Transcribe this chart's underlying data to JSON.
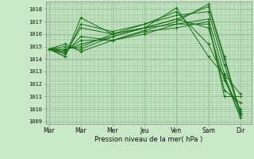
{
  "bg_color": "#c8e8c8",
  "grid_color": "#a0c8a0",
  "line_color": "#1a6e1a",
  "marker_color": "#1a6e1a",
  "xlabel": "Pression niveau de la mer( hPa )",
  "ylim": [
    1008.8,
    1018.6
  ],
  "yticks": [
    1009,
    1010,
    1011,
    1012,
    1013,
    1014,
    1015,
    1016,
    1017,
    1018
  ],
  "xtick_labels": [
    "Mar",
    "Mar",
    "Mer",
    "Jeu",
    "Ven",
    "Sam",
    "Dir"
  ],
  "xtick_positions": [
    0,
    1,
    2,
    3,
    4,
    5,
    6
  ],
  "xlim": [
    -0.1,
    6.35
  ],
  "series": [
    [
      1014.8,
      1014.2,
      1017.3,
      1016.0,
      1016.5,
      1018.1,
      1014.2,
      1012.7,
      1009.5
    ],
    [
      1014.8,
      1014.2,
      1016.8,
      1016.2,
      1016.8,
      1017.8,
      1015.2,
      1012.5,
      1009.3
    ],
    [
      1014.8,
      1014.4,
      1016.5,
      1016.0,
      1016.5,
      1017.2,
      1016.5,
      1012.3,
      1010.0
    ],
    [
      1014.8,
      1014.5,
      1015.8,
      1015.5,
      1016.0,
      1016.8,
      1016.8,
      1011.5,
      1010.5
    ],
    [
      1014.8,
      1014.6,
      1015.5,
      1015.5,
      1016.2,
      1016.5,
      1017.0,
      1011.0,
      1011.0
    ],
    [
      1014.8,
      1014.7,
      1015.2,
      1015.8,
      1016.5,
      1016.8,
      1017.2,
      1012.8,
      1011.2
    ],
    [
      1014.8,
      1014.8,
      1015.0,
      1016.0,
      1016.8,
      1017.5,
      1017.8,
      1013.5,
      1009.8
    ],
    [
      1014.8,
      1015.0,
      1014.8,
      1015.8,
      1016.5,
      1017.2,
      1018.2,
      1014.0,
      1009.6
    ],
    [
      1014.8,
      1015.2,
      1014.6,
      1015.5,
      1016.3,
      1017.0,
      1018.4,
      1014.2,
      1009.7
    ]
  ],
  "series_x": [
    0,
    0.5,
    1.0,
    2.0,
    3.0,
    4.0,
    5.0,
    5.5,
    6.0
  ],
  "vlines": [
    0,
    1.0,
    2.0,
    3.0,
    4.0,
    5.0,
    6.0
  ],
  "n_minor_vlines": 48,
  "n_minor_hlines": 90
}
